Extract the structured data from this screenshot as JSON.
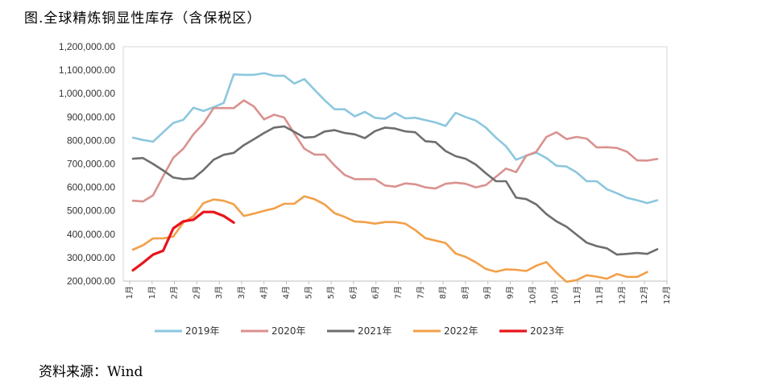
{
  "title": "图.全球精炼铜显性库存（含保税区）",
  "source": "资料来源：Wind",
  "chart_data": {
    "type": "line",
    "title": "图.全球精炼铜显性库存（含保税区）",
    "ylim": [
      200000,
      1200000
    ],
    "y_ticks": [
      "200,000.00",
      "300,000.00",
      "400,000.00",
      "500,000.00",
      "600,000.00",
      "700,000.00",
      "800,000.00",
      "900,000.00",
      "1,000,000.00",
      "1,100,000.00",
      "1,200,000.00"
    ],
    "x_tick_labels": [
      "1月",
      "1月",
      "2月",
      "2月",
      "3月",
      "3月",
      "4月",
      "4月",
      "5月",
      "5月",
      "6月",
      "6月",
      "7月",
      "7月",
      "8月",
      "8月",
      "9月",
      "9月",
      "10月",
      "10月",
      "11月",
      "11月",
      "12月",
      "12月",
      "12月"
    ],
    "points_per_series": 53,
    "legend_position": "bottom",
    "series": [
      {
        "name": "2019年",
        "color": "#8CC7DE",
        "values": [
          812000,
          802000,
          795000,
          835000,
          875000,
          888000,
          940000,
          926000,
          942000,
          960000,
          1082000,
          1080000,
          1080000,
          1087000,
          1076000,
          1076000,
          1043000,
          1062000,
          1017000,
          972000,
          933000,
          933000,
          903000,
          922000,
          897000,
          892000,
          918000,
          894000,
          897000,
          887000,
          877000,
          862000,
          918000,
          900000,
          885000,
          855000,
          812000,
          775000,
          718000,
          735000,
          748000,
          725000,
          692000,
          689000,
          664000,
          626000,
          626000,
          592000,
          575000,
          555000,
          545000,
          533000,
          545000
        ]
      },
      {
        "name": "2020年",
        "color": "#D9928F",
        "values": [
          543000,
          540000,
          566000,
          648000,
          726000,
          765000,
          826000,
          872000,
          938000,
          938000,
          938000,
          971000,
          945000,
          890000,
          910000,
          898000,
          830000,
          765000,
          740000,
          740000,
          693000,
          653000,
          635000,
          635000,
          635000,
          608000,
          603000,
          617000,
          613000,
          600000,
          595000,
          615000,
          620000,
          615000,
          600000,
          610000,
          645000,
          680000,
          665000,
          735000,
          752000,
          815000,
          835000,
          806000,
          815000,
          808000,
          770000,
          771000,
          768000,
          752000,
          715000,
          714000,
          721000
        ]
      },
      {
        "name": "2021年",
        "color": "#6E6E6E",
        "values": [
          722000,
          725000,
          700000,
          672000,
          642000,
          635000,
          638000,
          674000,
          718000,
          739000,
          747000,
          780000,
          805000,
          832000,
          855000,
          860000,
          837000,
          812000,
          815000,
          838000,
          844000,
          832000,
          826000,
          810000,
          840000,
          855000,
          851000,
          839000,
          835000,
          797000,
          793000,
          755000,
          733000,
          722000,
          697000,
          660000,
          626000,
          626000,
          556000,
          550000,
          527000,
          486000,
          455000,
          432000,
          398000,
          364000,
          349000,
          340000,
          313000,
          316000,
          320000,
          316000,
          336000
        ]
      },
      {
        "name": "2022年",
        "color": "#F2A049",
        "values": [
          334000,
          353000,
          382000,
          382000,
          390000,
          450000,
          477000,
          533000,
          548000,
          543000,
          528000,
          478000,
          488000,
          500000,
          510000,
          530000,
          530000,
          562000,
          550000,
          527000,
          490000,
          474000,
          454000,
          452000,
          445000,
          452000,
          452000,
          445000,
          418000,
          383000,
          373000,
          363000,
          318000,
          303000,
          280000,
          252000,
          240000,
          250000,
          248000,
          243000,
          266000,
          281000,
          236000,
          197000,
          204000,
          225000,
          219000,
          210000,
          230000,
          218000,
          218000,
          239000,
          null
        ]
      },
      {
        "name": "2023年",
        "color": "#E8141C",
        "values": [
          246000,
          278000,
          313000,
          330000,
          425000,
          455000,
          462000,
          495000,
          495000,
          478000,
          450000,
          null,
          null,
          null,
          null,
          null,
          null,
          null,
          null,
          null,
          null,
          null,
          null,
          null,
          null,
          null,
          null,
          null,
          null,
          null,
          null,
          null,
          null,
          null,
          null,
          null,
          null,
          null,
          null,
          null,
          null,
          null,
          null,
          null,
          null,
          null,
          null,
          null,
          null,
          null,
          null,
          null,
          null
        ]
      }
    ]
  }
}
